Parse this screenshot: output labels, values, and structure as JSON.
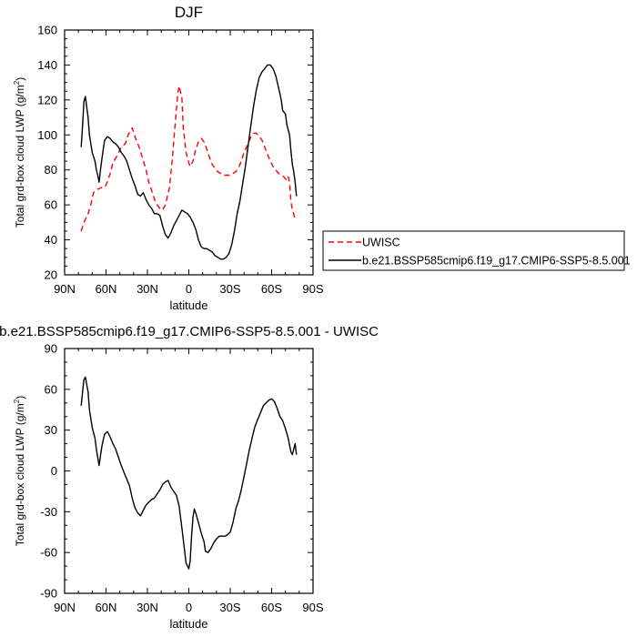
{
  "colors": {
    "uwisc": "#ff0000",
    "model": "#000000"
  },
  "chart_data": [
    {
      "type": "line",
      "title": "DJF",
      "xlabel": "latitude",
      "ylabel": "Total grd-box cloud LWP (g/m²)",
      "ylabel_main": "Total grd-box cloud LWP (g/m",
      "ylabel_sup": "2",
      "ylabel_end": ")",
      "x_axis": "latitude, 90N (left) to 90S (right)",
      "xlim": [
        90,
        -90
      ],
      "ylim": [
        20,
        160
      ],
      "xticks": [
        90,
        60,
        30,
        0,
        -30,
        -60,
        -90
      ],
      "xtick_labels": [
        "90N",
        "60N",
        "30N",
        "0",
        "30S",
        "60S",
        "90S"
      ],
      "yticks": [
        20,
        40,
        60,
        80,
        100,
        120,
        140,
        160
      ],
      "ytick_labels": [
        "20",
        "40",
        "60",
        "80",
        "100",
        "120",
        "140",
        "160"
      ],
      "legend_position": "right, outside plot",
      "series": [
        {
          "name": "UWISC",
          "style": "dashed",
          "color": "#ff0000",
          "points": [
            [
              78,
              45
            ],
            [
              76,
              50
            ],
            [
              73,
              55
            ],
            [
              71,
              60
            ],
            [
              69,
              67
            ],
            [
              66,
              69
            ],
            [
              63,
              70
            ],
            [
              61,
              70
            ],
            [
              59,
              73
            ],
            [
              57,
              78
            ],
            [
              55,
              84
            ],
            [
              52,
              88
            ],
            [
              49,
              93
            ],
            [
              46,
              95
            ],
            [
              44,
              100
            ],
            [
              41,
              104
            ],
            [
              39,
              99
            ],
            [
              36,
              93
            ],
            [
              34,
              88
            ],
            [
              31,
              80
            ],
            [
              29,
              73
            ],
            [
              26,
              66
            ],
            [
              24,
              61
            ],
            [
              21,
              58
            ],
            [
              19,
              57
            ],
            [
              17,
              60
            ],
            [
              14,
              70
            ],
            [
              12,
              86
            ],
            [
              10,
              105
            ],
            [
              8,
              124
            ],
            [
              7,
              128
            ],
            [
              5,
              121
            ],
            [
              4,
              104
            ],
            [
              2,
              90
            ],
            [
              0,
              84
            ],
            [
              -1,
              82
            ],
            [
              -3,
              85
            ],
            [
              -5,
              92
            ],
            [
              -7,
              96
            ],
            [
              -9,
              98
            ],
            [
              -11,
              96
            ],
            [
              -13,
              92
            ],
            [
              -15,
              87
            ],
            [
              -17,
              83
            ],
            [
              -19,
              81
            ],
            [
              -21,
              79
            ],
            [
              -23,
              78
            ],
            [
              -25,
              77
            ],
            [
              -28,
              77
            ],
            [
              -30,
              77
            ],
            [
              -32,
              78
            ],
            [
              -34,
              79
            ],
            [
              -36,
              81
            ],
            [
              -38,
              85
            ],
            [
              -40,
              90
            ],
            [
              -43,
              95
            ],
            [
              -45,
              99
            ],
            [
              -47,
              101
            ],
            [
              -49,
              101
            ],
            [
              -51,
              99
            ],
            [
              -53,
              97
            ],
            [
              -55,
              93
            ],
            [
              -57,
              89
            ],
            [
              -59,
              85
            ],
            [
              -61,
              82
            ],
            [
              -63,
              80
            ],
            [
              -65,
              78
            ],
            [
              -67,
              77
            ],
            [
              -69,
              76
            ],
            [
              -71,
              74
            ],
            [
              -72,
              76
            ],
            [
              -73,
              73
            ],
            [
              -74,
              62
            ],
            [
              -75,
              57
            ],
            [
              -77,
              52
            ]
          ]
        },
        {
          "name": "b.e21.BSSP585cmip6.f19_g17.CMIP6-SSP5-8.5.001",
          "style": "solid",
          "color": "#000000",
          "points": [
            [
              78,
              93
            ],
            [
              77,
              105
            ],
            [
              76,
              119
            ],
            [
              75,
              122
            ],
            [
              73,
              110
            ],
            [
              72,
              100
            ],
            [
              70,
              90
            ],
            [
              68,
              85
            ],
            [
              67,
              80
            ],
            [
              66,
              77
            ],
            [
              65,
              73
            ],
            [
              64,
              80
            ],
            [
              63,
              86
            ],
            [
              62,
              92
            ],
            [
              61,
              97
            ],
            [
              59,
              99
            ],
            [
              57,
              98
            ],
            [
              55,
              96
            ],
            [
              53,
              95
            ],
            [
              51,
              93
            ],
            [
              49,
              90
            ],
            [
              47,
              88
            ],
            [
              45,
              85
            ],
            [
              43,
              80
            ],
            [
              41,
              75
            ],
            [
              39,
              71
            ],
            [
              37,
              66
            ],
            [
              35,
              65
            ],
            [
              33,
              67
            ],
            [
              31,
              63
            ],
            [
              29,
              60
            ],
            [
              27,
              58
            ],
            [
              25,
              55
            ],
            [
              23,
              55
            ],
            [
              21,
              54
            ],
            [
              19,
              48
            ],
            [
              17,
              43
            ],
            [
              15,
              41
            ],
            [
              13,
              44
            ],
            [
              11,
              48
            ],
            [
              9,
              51
            ],
            [
              7,
              54
            ],
            [
              5,
              57
            ],
            [
              3,
              56
            ],
            [
              1,
              55
            ],
            [
              -1,
              53
            ],
            [
              -3,
              50
            ],
            [
              -5,
              46
            ],
            [
              -7,
              40
            ],
            [
              -9,
              36
            ],
            [
              -11,
              35
            ],
            [
              -13,
              35
            ],
            [
              -15,
              34
            ],
            [
              -17,
              33
            ],
            [
              -19,
              31
            ],
            [
              -21,
              30
            ],
            [
              -23,
              29
            ],
            [
              -25,
              29
            ],
            [
              -27,
              30
            ],
            [
              -29,
              32
            ],
            [
              -31,
              37
            ],
            [
              -33,
              45
            ],
            [
              -35,
              55
            ],
            [
              -37,
              62
            ],
            [
              -39,
              72
            ],
            [
              -41,
              82
            ],
            [
              -43,
              94
            ],
            [
              -45,
              106
            ],
            [
              -47,
              117
            ],
            [
              -49,
              126
            ],
            [
              -51,
              133
            ],
            [
              -53,
              136
            ],
            [
              -55,
              138
            ],
            [
              -57,
              140
            ],
            [
              -59,
              140
            ],
            [
              -61,
              138
            ],
            [
              -63,
              134
            ],
            [
              -65,
              127
            ],
            [
              -67,
              120
            ],
            [
              -68,
              114
            ],
            [
              -70,
              112
            ],
            [
              -71,
              106
            ],
            [
              -73,
              100
            ],
            [
              -74,
              91
            ],
            [
              -75,
              83
            ],
            [
              -76,
              79
            ],
            [
              -77,
              73
            ],
            [
              -78,
              65
            ]
          ]
        }
      ]
    },
    {
      "type": "line",
      "title": "b.e21.BSSP585cmip6.f19_g17.CMIP6-SSP5-8.5.001 - UWISC",
      "xlabel": "latitude",
      "ylabel": "Total grd-box cloud LWP (g/m²)",
      "ylabel_main": "Total grd-box cloud LWP (g/m",
      "ylabel_sup": "2",
      "ylabel_end": ")",
      "x_axis": "latitude, 90N (left) to 90S (right)",
      "xlim": [
        90,
        -90
      ],
      "ylim": [
        -90,
        90
      ],
      "xticks": [
        90,
        60,
        30,
        0,
        -30,
        -60,
        -90
      ],
      "xtick_labels": [
        "90N",
        "60N",
        "30N",
        "0",
        "30S",
        "60S",
        "90S"
      ],
      "yticks": [
        -90,
        -60,
        -30,
        0,
        30,
        60,
        90
      ],
      "ytick_labels": [
        "-90",
        "-60",
        "-30",
        "0",
        "30",
        "60",
        "90"
      ],
      "series": [
        {
          "style": "solid",
          "color": "#000000",
          "points": [
            [
              78,
              48
            ],
            [
              77,
              58
            ],
            [
              76,
              67
            ],
            [
              75,
              69
            ],
            [
              73,
              58
            ],
            [
              72,
              45
            ],
            [
              70,
              32
            ],
            [
              68,
              24
            ],
            [
              67,
              16
            ],
            [
              66,
              10
            ],
            [
              65,
              4
            ],
            [
              64,
              11
            ],
            [
              63,
              18
            ],
            [
              62,
              23
            ],
            [
              61,
              27
            ],
            [
              59,
              29
            ],
            [
              57,
              25
            ],
            [
              55,
              20
            ],
            [
              53,
              16
            ],
            [
              51,
              10
            ],
            [
              49,
              4
            ],
            [
              47,
              -1
            ],
            [
              45,
              -6
            ],
            [
              43,
              -11
            ],
            [
              41,
              -20
            ],
            [
              39,
              -27
            ],
            [
              37,
              -31
            ],
            [
              35,
              -33
            ],
            [
              33,
              -29
            ],
            [
              31,
              -25
            ],
            [
              29,
              -23
            ],
            [
              27,
              -21
            ],
            [
              25,
              -20
            ],
            [
              23,
              -17
            ],
            [
              21,
              -14
            ],
            [
              19,
              -10
            ],
            [
              17,
              -8
            ],
            [
              15,
              -7
            ],
            [
              13,
              -12
            ],
            [
              11,
              -15
            ],
            [
              9,
              -18
            ],
            [
              7,
              -26
            ],
            [
              5,
              -42
            ],
            [
              3,
              -59
            ],
            [
              2,
              -68
            ],
            [
              0,
              -72
            ],
            [
              -1,
              -66
            ],
            [
              -2,
              -48
            ],
            [
              -3,
              -34
            ],
            [
              -4,
              -28
            ],
            [
              -5,
              -31
            ],
            [
              -7,
              -38
            ],
            [
              -9,
              -46
            ],
            [
              -11,
              -52
            ],
            [
              -12,
              -59
            ],
            [
              -14,
              -60
            ],
            [
              -16,
              -57
            ],
            [
              -18,
              -53
            ],
            [
              -20,
              -50
            ],
            [
              -22,
              -48
            ],
            [
              -24,
              -48
            ],
            [
              -26,
              -48
            ],
            [
              -28,
              -47
            ],
            [
              -30,
              -45
            ],
            [
              -32,
              -38
            ],
            [
              -34,
              -28
            ],
            [
              -36,
              -22
            ],
            [
              -38,
              -14
            ],
            [
              -40,
              -4
            ],
            [
              -42,
              6
            ],
            [
              -44,
              16
            ],
            [
              -46,
              25
            ],
            [
              -48,
              33
            ],
            [
              -50,
              38
            ],
            [
              -52,
              43
            ],
            [
              -54,
              48
            ],
            [
              -56,
              50
            ],
            [
              -58,
              52
            ],
            [
              -60,
              53
            ],
            [
              -62,
              51
            ],
            [
              -64,
              46
            ],
            [
              -66,
              40
            ],
            [
              -68,
              37
            ],
            [
              -70,
              31
            ],
            [
              -72,
              24
            ],
            [
              -73,
              19
            ],
            [
              -74,
              14
            ],
            [
              -75,
              12
            ],
            [
              -76,
              16
            ],
            [
              -77,
              20
            ],
            [
              -78,
              12
            ]
          ]
        }
      ]
    }
  ]
}
